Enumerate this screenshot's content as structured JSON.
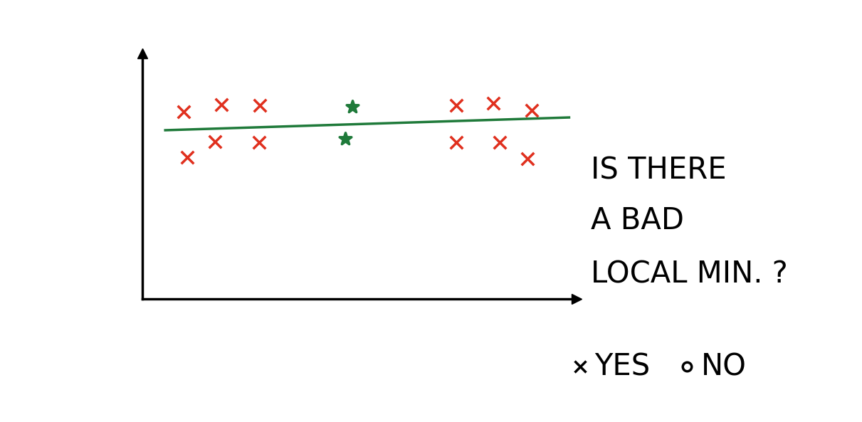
{
  "chart_data": {
    "type": "scatter",
    "xlim": [
      0,
      110
    ],
    "ylim": [
      0,
      100
    ],
    "tick_labels": false,
    "grid": false,
    "series": [
      {
        "type": "scatter",
        "color": "#e0301e",
        "marker": "x",
        "x": [
          10.4,
          20.0,
          29.8,
          79.5,
          88.9,
          98.6,
          11.3,
          18.4,
          29.5,
          79.5,
          90.5,
          97.5
        ],
        "values": [
          76.2,
          79.1,
          78.8,
          78.8,
          79.7,
          76.8,
          57.7,
          64.1,
          63.8,
          63.8,
          63.8,
          57.1
        ]
      },
      {
        "type": "scatter",
        "color": "#1f7a3a",
        "marker": "*",
        "x": [
          53.2,
          51.4
        ],
        "values": [
          78.3,
          65.2
        ]
      },
      {
        "type": "line",
        "color": "#1f7a3a",
        "line_style": "solid",
        "x": [
          5.8,
          108.1
        ],
        "values": [
          68.7,
          73.9
        ]
      }
    ],
    "question": [
      "IS THERE",
      "A BAD",
      "LOCAL MIN. ?"
    ],
    "answers": [
      {
        "text": "YES",
        "checked": true
      },
      {
        "text": "NO",
        "checked": false
      }
    ]
  }
}
